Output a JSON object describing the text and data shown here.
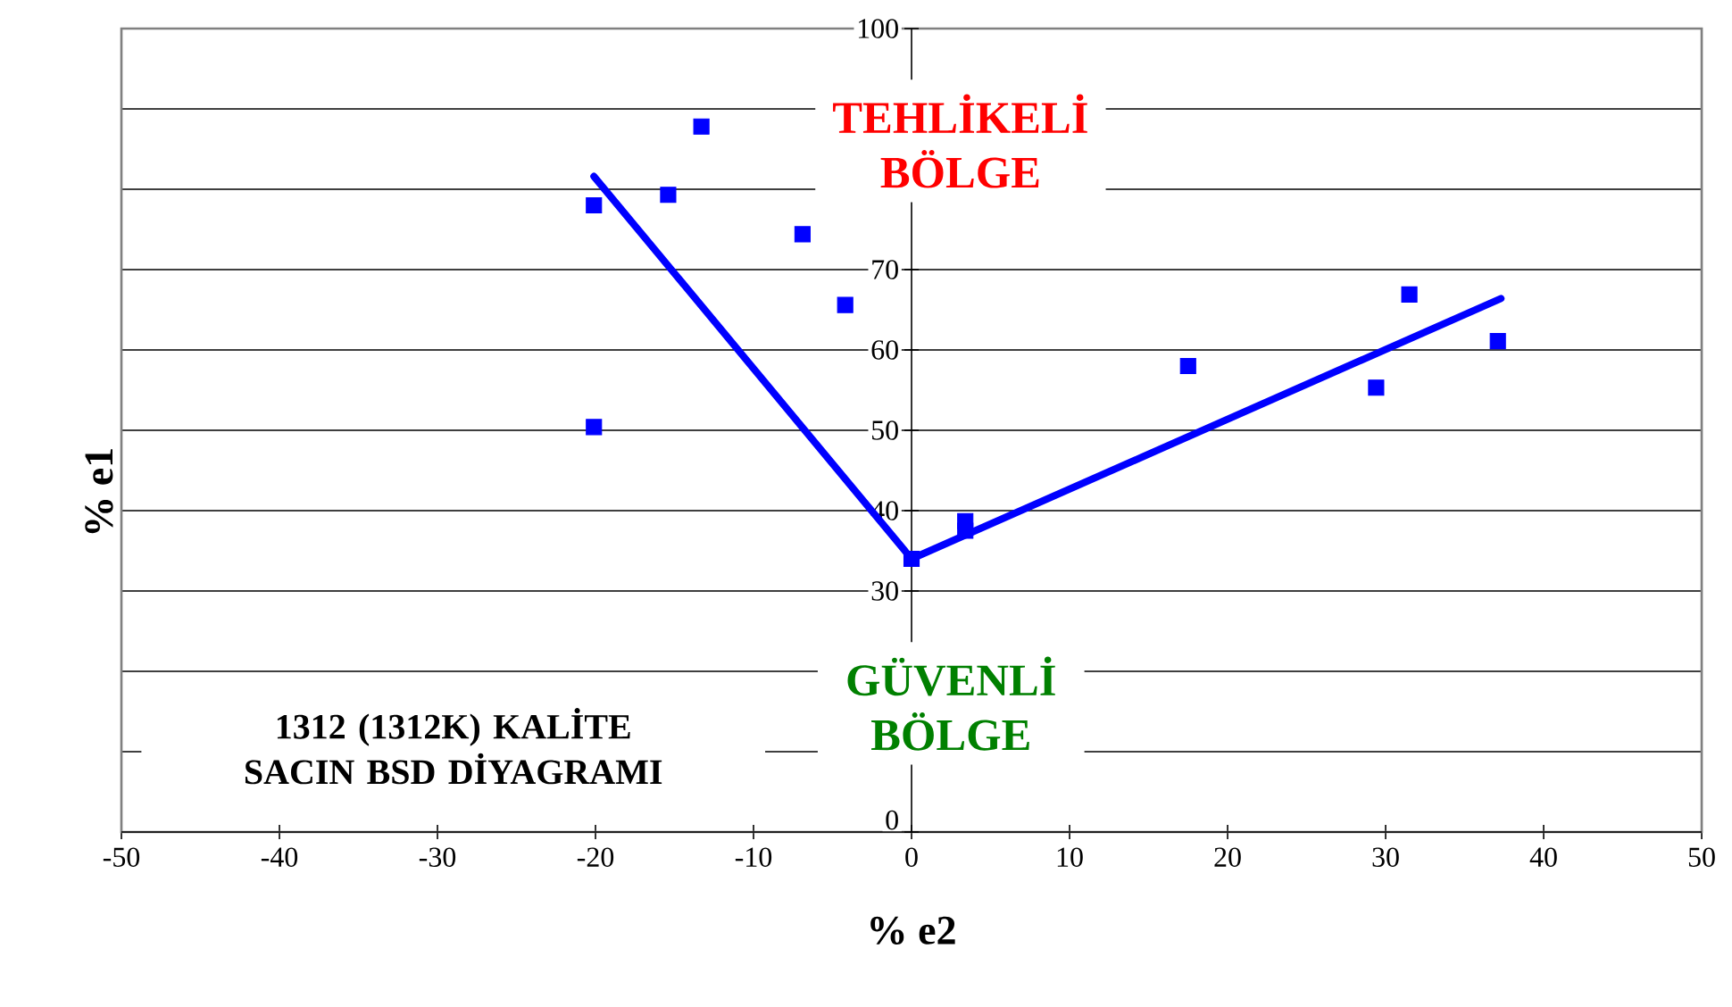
{
  "chart_data": {
    "type": "scatter",
    "xlabel": "% e2",
    "ylabel": "% e1",
    "annotations": [
      "TEHLİKELİ BÖLGE",
      "GÜVENLİ BÖLGE",
      "1312 (1312K) KALİTE SACIN BSD DİYAGRAMI"
    ],
    "x": [
      -20.1,
      -20.1,
      -15.4,
      -13.3,
      -6.9,
      -4.2,
      0,
      3.4,
      3.4,
      17.5,
      29.4,
      31.5,
      37.1
    ],
    "series": [
      {
        "color": "#0000ff",
        "marker": "square",
        "values": [
          50.4,
          78.0,
          79.3,
          87.8,
          74.4,
          65.6,
          34.0,
          38.7,
          37.5,
          58.0,
          55.3,
          66.9,
          61.1
        ]
      },
      {
        "type": "line",
        "color": "#0000ff",
        "marker": "none",
        "x": [
          -20.1,
          0,
          37.3
        ],
        "values": [
          81.6,
          34.0,
          66.4
        ]
      }
    ],
    "xlim": [
      -50,
      50
    ],
    "ylim": [
      0,
      100
    ],
    "xticks": [
      -50,
      -40,
      -30,
      -20,
      -10,
      0,
      10,
      20,
      30,
      40,
      50
    ],
    "yticks": [
      0,
      {
        "value": 10,
        "label": null
      },
      {
        "value": 20,
        "label": null
      },
      30,
      40,
      50,
      60,
      70,
      {
        "value": 80,
        "label": null
      },
      {
        "value": 90,
        "label": null
      },
      100
    ],
    "grid": "y"
  }
}
